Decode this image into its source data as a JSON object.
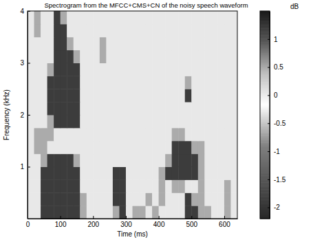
{
  "chart_data": {
    "type": "heatmap",
    "title": "Spectrogram from the MFCC+CMS+CN of the noisy speech waveform",
    "x_label": "Time (ms)",
    "y_label": "Frequency (kHz)",
    "x": [
      0,
      20,
      40,
      60,
      80,
      100,
      120,
      140,
      160,
      180,
      200,
      220,
      240,
      260,
      280,
      300,
      320,
      340,
      360,
      380,
      400,
      420,
      440,
      460,
      480,
      500,
      520,
      540,
      560,
      580,
      600,
      620
    ],
    "y": [
      0,
      0.25,
      0.5,
      0.75,
      1,
      1.25,
      1.5,
      1.75,
      2,
      2.25,
      2.5,
      2.75,
      3,
      3.25,
      3.5,
      3.75
    ],
    "values": [
      [
        -0.3,
        -0.3,
        1.2,
        1.2,
        1.2,
        1.2,
        1.2,
        1.2,
        0.5,
        -0.3,
        -0.3,
        -0.3,
        -0.3,
        0.5,
        1.2,
        -0.3,
        0.5,
        0.5,
        -0.3,
        0.5,
        -0.3,
        -0.3,
        -0.3,
        -0.3,
        1.2,
        1.2,
        0.5,
        0.5,
        -0.3,
        -0.3,
        0.5,
        -0.3
      ],
      [
        -0.3,
        -0.3,
        1.2,
        1.2,
        1.2,
        1.2,
        1.2,
        1.2,
        0.5,
        -0.3,
        -0.3,
        -0.3,
        -0.3,
        1.2,
        1.2,
        -0.3,
        -0.3,
        -0.3,
        0.5,
        -0.3,
        0.5,
        -0.3,
        -0.3,
        -0.3,
        1.2,
        0.5,
        0.5,
        -0.3,
        -0.3,
        -0.3,
        0.5,
        -0.3
      ],
      [
        -0.3,
        -0.3,
        1.2,
        1.2,
        1.2,
        1.2,
        1.2,
        1.2,
        -0.3,
        -0.3,
        -0.3,
        -0.3,
        -0.3,
        1.2,
        1.2,
        -0.3,
        -0.3,
        -0.3,
        -0.3,
        -0.3,
        0.5,
        -0.3,
        0.5,
        0.5,
        -0.3,
        -0.3,
        0.5,
        -0.3,
        -0.3,
        -0.3,
        0.5,
        -0.3
      ],
      [
        -0.3,
        -0.3,
        1.2,
        1.2,
        1.2,
        1.2,
        1.2,
        1.2,
        -0.3,
        -0.3,
        -0.3,
        -0.3,
        -0.3,
        1.2,
        1.2,
        -0.3,
        -0.3,
        -0.3,
        -0.3,
        -0.3,
        0.5,
        1.2,
        1.2,
        1.2,
        1.2,
        1.2,
        0.5,
        -0.3,
        -0.3,
        -0.3,
        -0.3,
        -0.3
      ],
      [
        -0.3,
        -0.3,
        0.5,
        1.2,
        1.2,
        1.2,
        1.2,
        0.5,
        -0.3,
        -0.3,
        -0.3,
        -0.3,
        -0.3,
        -0.3,
        -0.3,
        -0.3,
        -0.3,
        -0.3,
        -0.3,
        -0.3,
        -0.3,
        0.5,
        1.2,
        1.2,
        1.2,
        1.2,
        0.5,
        -0.3,
        -0.3,
        -0.3,
        -0.3,
        -0.3
      ],
      [
        -0.3,
        0.5,
        0.5,
        -0.3,
        -0.3,
        -0.3,
        -0.3,
        -0.3,
        -0.3,
        -0.3,
        -0.3,
        -0.3,
        -0.3,
        -0.3,
        -0.3,
        -0.3,
        -0.3,
        -0.3,
        -0.3,
        -0.3,
        -0.3,
        -0.3,
        1.2,
        1.2,
        1.2,
        0.5,
        0.5,
        -0.3,
        -0.3,
        -0.3,
        -0.3,
        -0.3
      ],
      [
        -0.3,
        0.5,
        0.5,
        0.5,
        -0.3,
        -0.3,
        -0.3,
        -0.3,
        -0.3,
        -0.3,
        -0.3,
        -0.3,
        -0.3,
        -0.3,
        -0.3,
        -0.3,
        -0.3,
        -0.3,
        -0.3,
        -0.3,
        -0.3,
        -0.3,
        0.5,
        0.5,
        -0.3,
        -0.3,
        -0.3,
        -0.3,
        -0.3,
        -0.3,
        -0.3,
        -0.3
      ],
      [
        -0.3,
        -0.3,
        -0.3,
        0.5,
        1.2,
        1.2,
        1.2,
        1.2,
        -0.3,
        -0.3,
        -0.3,
        -0.3,
        -0.3,
        -0.3,
        -0.3,
        -0.3,
        -0.3,
        -0.3,
        -0.3,
        -0.3,
        -0.3,
        -0.3,
        -0.3,
        -0.3,
        -0.3,
        -0.3,
        -0.3,
        -0.3,
        -0.3,
        -0.3,
        -0.3,
        -0.3
      ],
      [
        -0.3,
        -0.3,
        -0.3,
        1.2,
        1.2,
        1.2,
        1.2,
        1.2,
        -0.3,
        -0.3,
        -0.3,
        -0.3,
        -0.3,
        -0.3,
        -0.3,
        -0.3,
        -0.3,
        -0.3,
        -0.3,
        -0.3,
        -0.3,
        -0.3,
        -0.3,
        -0.3,
        -0.3,
        -0.3,
        -0.3,
        -0.3,
        -0.3,
        -0.3,
        -0.3,
        -0.3
      ],
      [
        -0.3,
        -0.3,
        -0.3,
        1.2,
        1.2,
        1.2,
        1.2,
        1.2,
        -0.3,
        -0.3,
        -0.3,
        -0.3,
        -0.3,
        -0.3,
        -0.3,
        -0.3,
        -0.3,
        -0.3,
        -0.3,
        -0.3,
        -0.3,
        -0.3,
        -0.3,
        -0.3,
        1.2,
        -0.3,
        -0.3,
        -0.3,
        -0.3,
        -0.3,
        -0.3,
        -0.3
      ],
      [
        -0.3,
        -0.3,
        -0.3,
        1.2,
        1.2,
        1.2,
        1.2,
        1.2,
        -0.3,
        -0.3,
        -0.3,
        -0.3,
        -0.3,
        -0.3,
        -0.3,
        -0.3,
        -0.3,
        -0.3,
        -0.3,
        -0.3,
        -0.3,
        -0.3,
        -0.3,
        -0.3,
        0.5,
        -0.3,
        -0.3,
        -0.3,
        -0.3,
        -0.3,
        -0.3,
        -0.3
      ],
      [
        -0.3,
        -0.3,
        -0.3,
        0.5,
        1.2,
        1.2,
        1.2,
        1.2,
        -0.3,
        -0.3,
        -0.3,
        -0.3,
        -0.3,
        -0.3,
        -0.3,
        -0.3,
        -0.3,
        -0.3,
        -0.3,
        -0.3,
        -0.3,
        -0.3,
        -0.3,
        -0.3,
        -0.3,
        -0.3,
        -0.3,
        -0.3,
        -0.3,
        -0.3,
        -0.3,
        -0.3
      ],
      [
        -0.3,
        -0.3,
        -0.3,
        -0.3,
        1.2,
        1.2,
        1.2,
        0.5,
        -0.3,
        -0.3,
        -0.3,
        0.5,
        -0.3,
        -0.3,
        -0.3,
        -0.3,
        -0.3,
        -0.3,
        -0.3,
        -0.3,
        -0.3,
        -0.3,
        -0.3,
        -0.3,
        -0.3,
        -0.3,
        -0.3,
        -0.3,
        -0.3,
        -0.3,
        -0.3,
        -0.3
      ],
      [
        -0.3,
        -0.3,
        -0.3,
        -0.3,
        1.2,
        1.2,
        0.5,
        -0.3,
        -0.3,
        -0.3,
        -0.3,
        0.5,
        -0.3,
        -0.3,
        -0.3,
        -0.3,
        -0.3,
        -0.3,
        -0.3,
        -0.3,
        -0.3,
        -0.3,
        -0.3,
        -0.3,
        -0.3,
        -0.3,
        -0.3,
        -0.3,
        -0.3,
        -0.3,
        -0.3,
        -0.3
      ],
      [
        -0.3,
        0.5,
        -0.3,
        -0.3,
        1.2,
        1.2,
        -0.3,
        -0.3,
        -0.3,
        -0.3,
        -0.3,
        -0.3,
        -0.3,
        -0.3,
        -0.3,
        -0.3,
        -0.3,
        -0.3,
        -0.3,
        -0.3,
        -0.3,
        -0.3,
        -0.3,
        -0.3,
        -0.3,
        -0.3,
        -0.3,
        -0.3,
        -0.3,
        -0.3,
        -0.3,
        -0.3
      ],
      [
        -0.3,
        0.5,
        -0.3,
        -0.3,
        1.2,
        0.5,
        -0.3,
        -0.3,
        -0.3,
        -0.3,
        -0.3,
        -0.3,
        -0.3,
        -0.3,
        -0.3,
        -0.3,
        -0.3,
        -0.3,
        -0.3,
        -0.3,
        -0.3,
        -0.3,
        -0.3,
        -0.3,
        -0.3,
        -0.3,
        -0.3,
        -0.3,
        -0.3,
        -0.3,
        -0.3,
        -0.3
      ]
    ],
    "xlim": [
      0,
      640
    ],
    "ylim": [
      0,
      4
    ],
    "xticks": [
      0,
      100,
      200,
      300,
      400,
      500,
      600
    ],
    "yticks": [
      1,
      2,
      3,
      4
    ],
    "colorbar": {
      "label": "dB",
      "range": [
        -2.2,
        1.5
      ],
      "ticks": [
        -2,
        -1.5,
        -1,
        -0.5,
        0,
        0.5,
        1
      ]
    }
  }
}
